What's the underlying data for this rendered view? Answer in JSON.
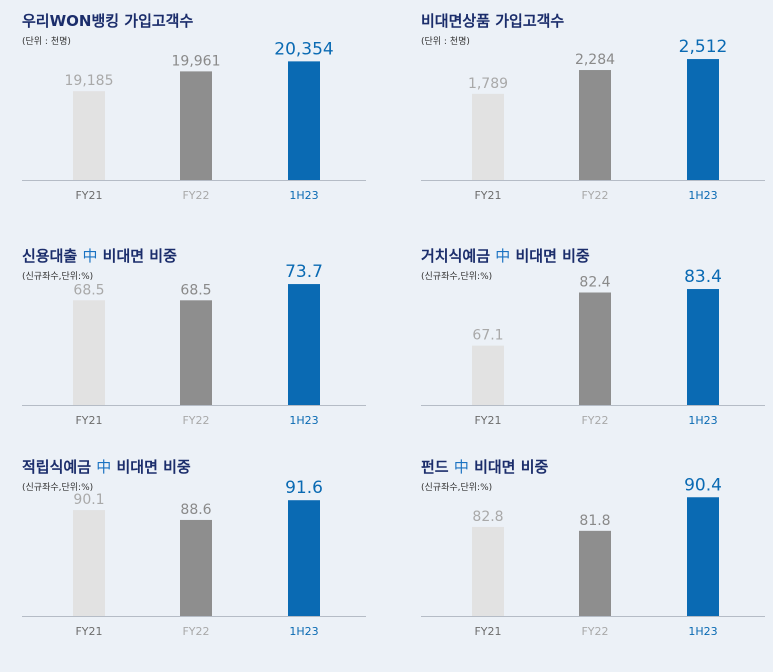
{
  "colors": {
    "bar_prev1": "#e2e2e2",
    "bar_prev2": "#8e8e8e",
    "bar_current": "#0a6ab3",
    "label_prev1": "#a9a9a9",
    "label_prev2": "#8a8a8a",
    "label_current": "#0a6ab3",
    "axis": "#b5bcc6",
    "title": "#1b2d6b",
    "accent": "#1a72c2"
  },
  "chart_data": [
    {
      "id": "won-banking",
      "type": "bar",
      "title": "우리WON뱅킹 가입고객수",
      "title_parts": [
        "우리WON뱅킹 가입고객수"
      ],
      "unit": "(단위 : 천명)",
      "categories": [
        "FY21",
        "FY22",
        "1H23"
      ],
      "values": [
        19185,
        19961,
        20354
      ],
      "value_labels": [
        "19,185",
        "19,961",
        "20,354"
      ],
      "ylim": [
        15700,
        20800
      ]
    },
    {
      "id": "non-face-products",
      "type": "bar",
      "title": "비대면상품 가입고객수",
      "title_parts": [
        "비대면상품 가입고객수"
      ],
      "unit": "(단위 : 천명)",
      "categories": [
        "FY21",
        "FY22",
        "1H23"
      ],
      "values": [
        1789,
        2284,
        2512
      ],
      "value_labels": [
        "1,789",
        "2,284",
        "2,512"
      ],
      "ylim": [
        0,
        2700
      ]
    },
    {
      "id": "credit-loan",
      "type": "bar",
      "title": "신용대출 中 비대면 비중",
      "title_parts": [
        "신용대출 ",
        "中",
        " 비대면 비중"
      ],
      "unit": "(신규좌수,단위:%)",
      "categories": [
        "FY21",
        "FY22",
        "1H23"
      ],
      "values": [
        68.5,
        68.5,
        73.7
      ],
      "value_labels": [
        "68.5",
        "68.5",
        "73.7"
      ],
      "ylim": [
        35,
        75
      ]
    },
    {
      "id": "demand-deposit",
      "type": "bar",
      "title": "거치식예금 中 비대면 비중",
      "title_parts": [
        "거치식예금 ",
        "中",
        " 비대면 비중"
      ],
      "unit": "(신규좌수,단위:%)",
      "categories": [
        "FY21",
        "FY22",
        "1H23"
      ],
      "values": [
        67.1,
        82.4,
        83.4
      ],
      "value_labels": [
        "67.1",
        "82.4",
        "83.4"
      ],
      "ylim": [
        50,
        86
      ]
    },
    {
      "id": "installment-deposit",
      "type": "bar",
      "title": "적립식예금 中 비대면 비중",
      "title_parts": [
        "적립식예금 ",
        "中",
        " 비대면 비중"
      ],
      "unit": "(신규좌수,단위:%)",
      "categories": [
        "FY21",
        "FY22",
        "1H23"
      ],
      "values": [
        90.1,
        88.6,
        91.6
      ],
      "value_labels": [
        "90.1",
        "88.6",
        "91.6"
      ],
      "ylim": [
        74,
        93
      ]
    },
    {
      "id": "fund",
      "type": "bar",
      "title": "펀드 中 비대면 비중",
      "title_parts": [
        "펀드 ",
        "中",
        " 비대면 비중"
      ],
      "unit": "(신규좌수,단위:%)",
      "categories": [
        "FY21",
        "FY22",
        "1H23"
      ],
      "values": [
        82.8,
        81.8,
        90.4
      ],
      "value_labels": [
        "82.8",
        "81.8",
        "90.4"
      ],
      "ylim": [
        60,
        92
      ]
    }
  ]
}
